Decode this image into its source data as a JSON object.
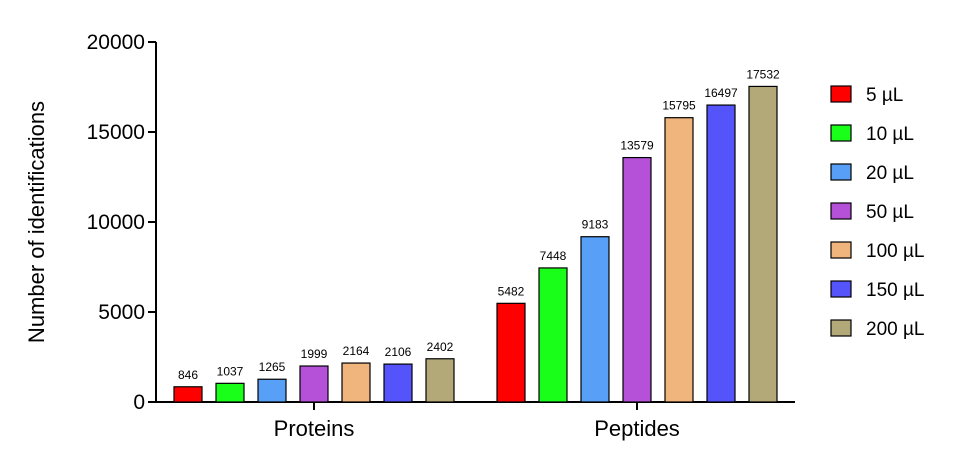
{
  "chart_data": {
    "type": "bar",
    "title": "",
    "xlabel": "",
    "ylabel": "Number of identifications",
    "ylim": [
      0,
      20000
    ],
    "yticks": [
      0,
      5000,
      10000,
      15000,
      20000
    ],
    "grid": false,
    "legend_position": "right",
    "categories": [
      "Proteins",
      "Peptides"
    ],
    "series": [
      {
        "name": "5 µL",
        "color": "#ff0000",
        "values": [
          846,
          5482
        ]
      },
      {
        "name": "10 µL",
        "color": "#19ff19",
        "values": [
          1037,
          7448
        ]
      },
      {
        "name": "20 µL",
        "color": "#579ff7",
        "values": [
          1265,
          9183
        ]
      },
      {
        "name": "50 µL",
        "color": "#b451d8",
        "values": [
          1999,
          13579
        ]
      },
      {
        "name": "100 µL",
        "color": "#f0b47d",
        "values": [
          2164,
          15795
        ]
      },
      {
        "name": "150 µL",
        "color": "#5454fa",
        "values": [
          2106,
          16497
        ]
      },
      {
        "name": "200 µL",
        "color": "#b3a878",
        "values": [
          2402,
          17532
        ]
      }
    ]
  }
}
